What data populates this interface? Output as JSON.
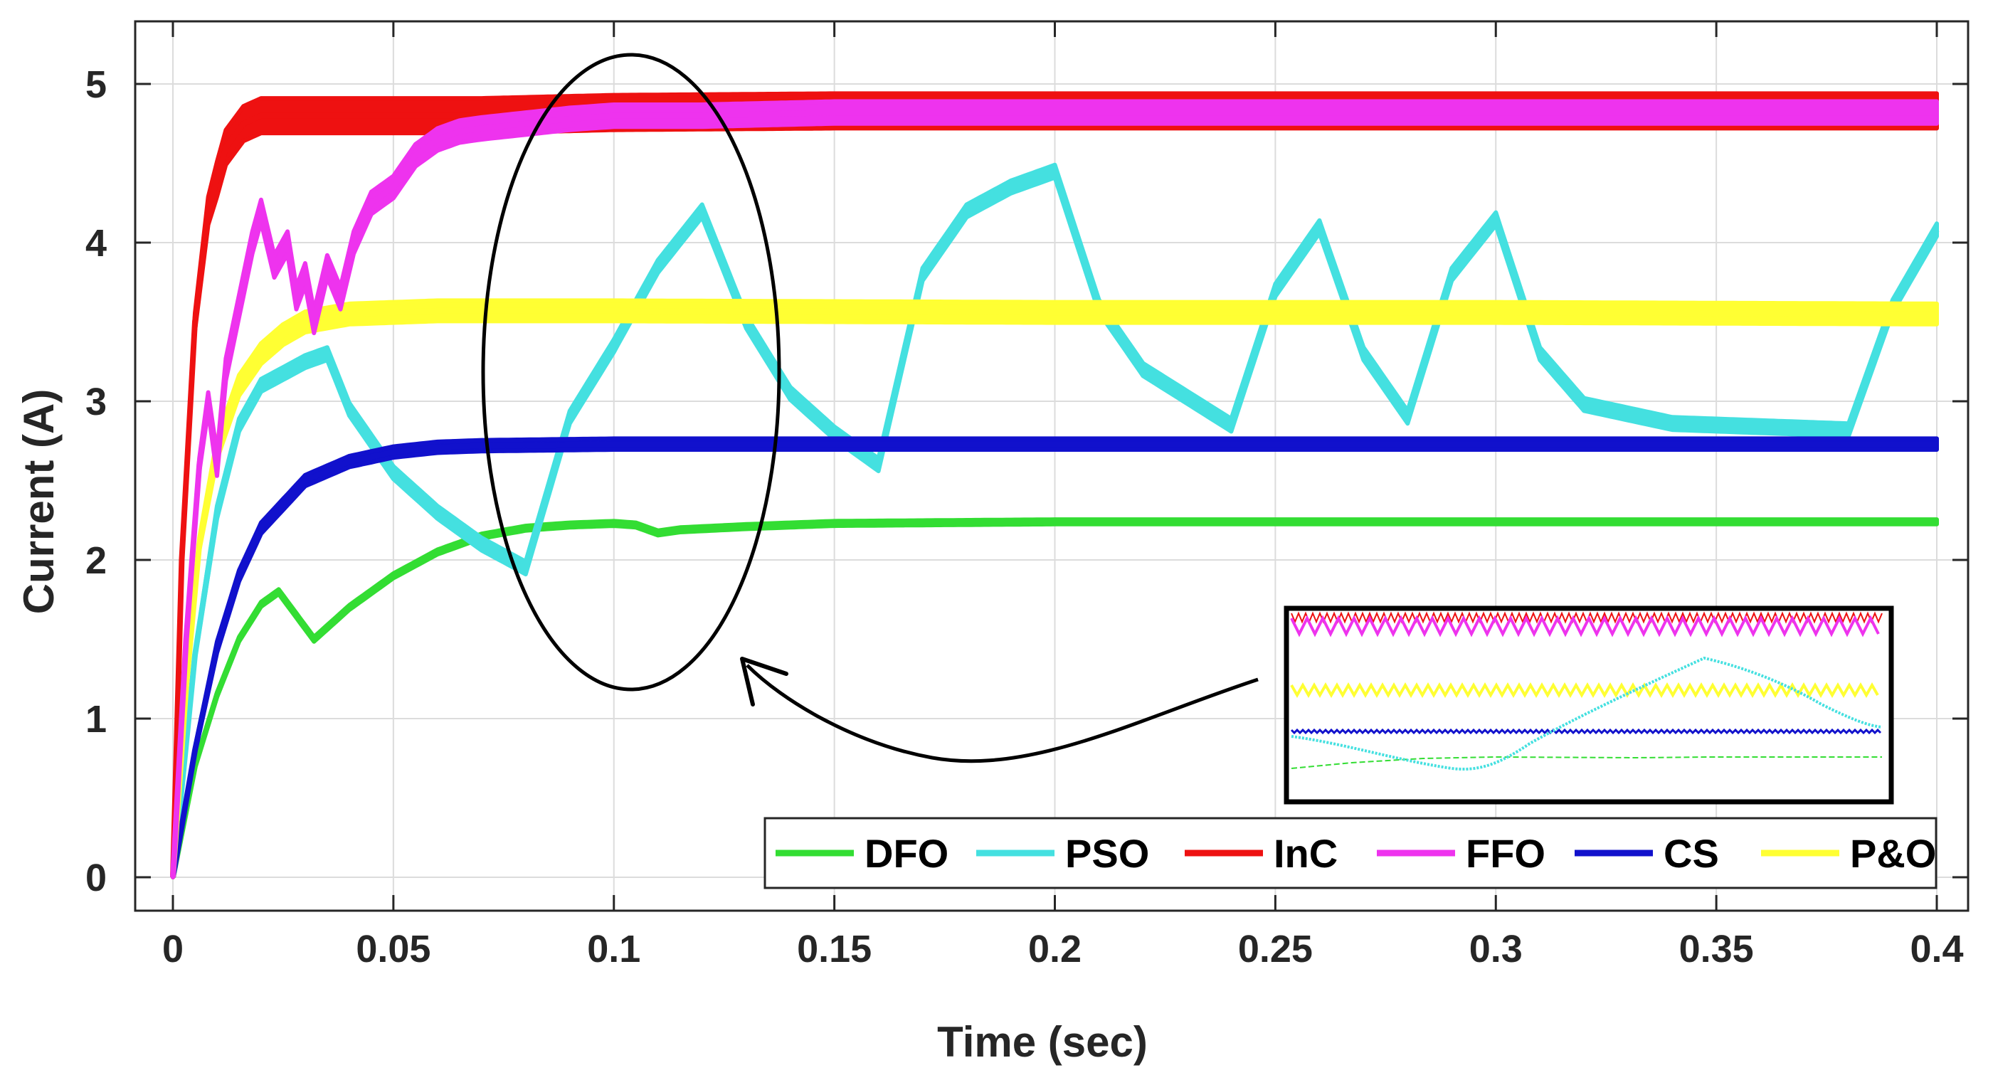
{
  "chart_data": {
    "type": "line",
    "title": "",
    "xlabel": "Time (sec)",
    "ylabel": "Current (A)",
    "xlim": [
      0,
      0.4
    ],
    "ylim": [
      0,
      5.2
    ],
    "x_ticks": [
      0,
      0.05,
      0.1,
      0.15,
      0.2,
      0.25,
      0.3,
      0.35,
      0.4
    ],
    "x_tick_labels": [
      "0",
      "0.05",
      "0.1",
      "0.15",
      "0.2",
      "0.25",
      "0.3",
      "0.35",
      "0.4"
    ],
    "y_ticks": [
      0,
      1,
      2,
      3,
      4,
      5
    ],
    "y_tick_labels": [
      "0",
      "1",
      "2",
      "3",
      "4",
      "5"
    ],
    "grid": true,
    "legend_position": "bottom-right",
    "series": [
      {
        "name": "DFO",
        "color": "#33dd33",
        "ripple": 0.03,
        "x": [
          0,
          0.005,
          0.01,
          0.015,
          0.02,
          0.024,
          0.028,
          0.032,
          0.04,
          0.05,
          0.06,
          0.07,
          0.08,
          0.09,
          0.1,
          0.105,
          0.11,
          0.115,
          0.13,
          0.15,
          0.2,
          0.3,
          0.4
        ],
        "y": [
          0,
          0.7,
          1.15,
          1.5,
          1.72,
          1.8,
          1.65,
          1.5,
          1.7,
          1.9,
          2.05,
          2.15,
          2.2,
          2.22,
          2.23,
          2.22,
          2.17,
          2.19,
          2.21,
          2.23,
          2.24,
          2.24,
          2.24
        ]
      },
      {
        "name": "PSO",
        "color": "#44e0e0",
        "ripple": 0.08,
        "x": [
          0,
          0.005,
          0.01,
          0.015,
          0.02,
          0.03,
          0.035,
          0.04,
          0.05,
          0.06,
          0.07,
          0.08,
          0.09,
          0.1,
          0.11,
          0.12,
          0.13,
          0.14,
          0.15,
          0.16,
          0.17,
          0.18,
          0.19,
          0.2,
          0.21,
          0.22,
          0.24,
          0.25,
          0.26,
          0.27,
          0.28,
          0.29,
          0.3,
          0.31,
          0.32,
          0.34,
          0.36,
          0.38,
          0.39,
          0.4
        ],
        "y": [
          0,
          1.4,
          2.3,
          2.85,
          3.1,
          3.25,
          3.3,
          2.95,
          2.55,
          2.3,
          2.1,
          1.95,
          2.9,
          3.35,
          3.85,
          4.2,
          3.5,
          3.05,
          2.8,
          2.6,
          3.8,
          4.2,
          4.35,
          4.45,
          3.6,
          3.2,
          2.85,
          3.7,
          4.1,
          3.3,
          2.9,
          3.8,
          4.15,
          3.3,
          2.98,
          2.86,
          2.84,
          2.82,
          3.6,
          4.08
        ]
      },
      {
        "name": "InC",
        "color": "#ee1111",
        "ripple": 0.22,
        "x": [
          0,
          0.002,
          0.005,
          0.008,
          0.012,
          0.016,
          0.02,
          0.03,
          0.05,
          0.07,
          0.1,
          0.15,
          0.2,
          0.3,
          0.4
        ],
        "y": [
          0,
          2.0,
          3.5,
          4.2,
          4.6,
          4.75,
          4.8,
          4.8,
          4.8,
          4.8,
          4.82,
          4.83,
          4.83,
          4.83,
          4.83
        ]
      },
      {
        "name": "FFO",
        "color": "#ee33ee",
        "ripple": 0.14,
        "x": [
          0,
          0.003,
          0.006,
          0.008,
          0.01,
          0.012,
          0.015,
          0.018,
          0.02,
          0.023,
          0.026,
          0.028,
          0.03,
          0.032,
          0.035,
          0.038,
          0.041,
          0.045,
          0.05,
          0.055,
          0.06,
          0.065,
          0.07,
          0.08,
          0.09,
          0.1,
          0.12,
          0.15,
          0.2,
          0.3,
          0.4
        ],
        "y": [
          0,
          1.5,
          2.6,
          3.0,
          2.6,
          3.2,
          3.6,
          4.0,
          4.2,
          3.85,
          4.0,
          3.65,
          3.8,
          3.5,
          3.85,
          3.65,
          4.0,
          4.25,
          4.35,
          4.55,
          4.65,
          4.7,
          4.72,
          4.75,
          4.78,
          4.8,
          4.8,
          4.82,
          4.82,
          4.82,
          4.82
        ]
      },
      {
        "name": "CS",
        "color": "#1111cc",
        "ripple": 0.07,
        "x": [
          0,
          0.005,
          0.01,
          0.015,
          0.02,
          0.03,
          0.04,
          0.05,
          0.06,
          0.07,
          0.1,
          0.2,
          0.3,
          0.4
        ],
        "y": [
          0,
          0.8,
          1.45,
          1.9,
          2.2,
          2.5,
          2.62,
          2.68,
          2.71,
          2.72,
          2.73,
          2.73,
          2.73,
          2.73
        ]
      },
      {
        "name": "P&O",
        "color": "#ffff33",
        "ripple": 0.13,
        "x": [
          0,
          0.003,
          0.006,
          0.01,
          0.015,
          0.02,
          0.025,
          0.03,
          0.04,
          0.05,
          0.06,
          0.08,
          0.1,
          0.2,
          0.3,
          0.4
        ],
        "y": [
          0,
          1.2,
          2.1,
          2.7,
          3.1,
          3.3,
          3.42,
          3.5,
          3.55,
          3.56,
          3.57,
          3.57,
          3.57,
          3.56,
          3.56,
          3.55
        ]
      }
    ],
    "annotations": [
      {
        "type": "ellipse",
        "center_x": 0.105,
        "center_y": 3.2,
        "description": "zoom region"
      },
      {
        "type": "arrow",
        "description": "points from inset to zoom region"
      },
      {
        "type": "inset",
        "description": "magnified view of zoom region"
      }
    ]
  }
}
